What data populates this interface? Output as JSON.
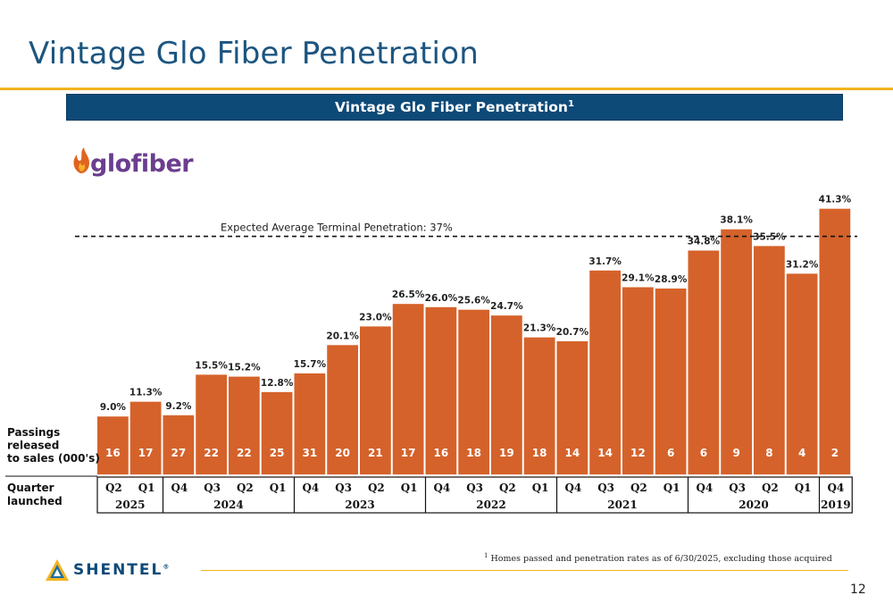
{
  "slide": {
    "title": "Vintage Glo Fiber Penetration",
    "banner_title": "Vintage Glo Fiber Penetration",
    "banner_superscript": "1",
    "footnote_marker": "1",
    "footnote_text": "Homes passed and penetration rates as of 6/30/2025, excluding those acquired",
    "page_number": "12",
    "brand_logo_text": "glofiber",
    "company_logo_text": "SHENTEL",
    "company_logo_mark": "®"
  },
  "colors": {
    "bar": "#d5622a",
    "title": "#1c5580",
    "banner": "#0e4a78",
    "rule": "#f2b420",
    "glo_text": "#6b3e8e",
    "glo_flame": "#e0641f"
  },
  "chart_data": {
    "type": "bar",
    "reference_line": {
      "label": "Expected Average Terminal Penetration: 37%",
      "value": 37
    },
    "row_labels": {
      "passings": [
        "Passings",
        "released",
        "to sales (000's)"
      ],
      "quarter": [
        "Quarter",
        "launched"
      ]
    },
    "categories": [
      "Q2",
      "Q1",
      "Q4",
      "Q3",
      "Q2",
      "Q1",
      "Q4",
      "Q3",
      "Q2",
      "Q1",
      "Q4",
      "Q3",
      "Q2",
      "Q1",
      "Q4",
      "Q3",
      "Q2",
      "Q1",
      "Q4",
      "Q3",
      "Q2",
      "Q1",
      "Q4"
    ],
    "values": [
      9.0,
      11.3,
      9.2,
      15.5,
      15.2,
      12.8,
      15.7,
      20.1,
      23.0,
      26.5,
      26.0,
      25.6,
      24.7,
      21.3,
      20.7,
      31.7,
      29.1,
      28.9,
      34.8,
      38.1,
      35.5,
      31.2,
      41.3
    ],
    "value_labels": [
      "9.0%",
      "11.3%",
      "9.2%",
      "15.5%",
      "15.2%",
      "12.8%",
      "15.7%",
      "20.1%",
      "23.0%",
      "26.5%",
      "26.0%",
      "25.6%",
      "24.7%",
      "21.3%",
      "20.7%",
      "31.7%",
      "29.1%",
      "28.9%",
      "34.8%",
      "38.1%",
      "35.5%",
      "31.2%",
      "41.3%"
    ],
    "passings": [
      "16",
      "17",
      "27",
      "22",
      "22",
      "25",
      "31",
      "20",
      "21",
      "17",
      "16",
      "18",
      "19",
      "18",
      "14",
      "14",
      "12",
      "6",
      "6",
      "9",
      "8",
      "4",
      "2"
    ],
    "years": [
      {
        "label": "2025",
        "start": 0,
        "count": 2
      },
      {
        "label": "2024",
        "start": 2,
        "count": 4
      },
      {
        "label": "2023",
        "start": 6,
        "count": 4
      },
      {
        "label": "2022",
        "start": 10,
        "count": 4
      },
      {
        "label": "2021",
        "start": 14,
        "count": 4
      },
      {
        "label": "2020",
        "start": 18,
        "count": 4
      },
      {
        "label": "2019",
        "start": 22,
        "count": 1
      }
    ]
  }
}
